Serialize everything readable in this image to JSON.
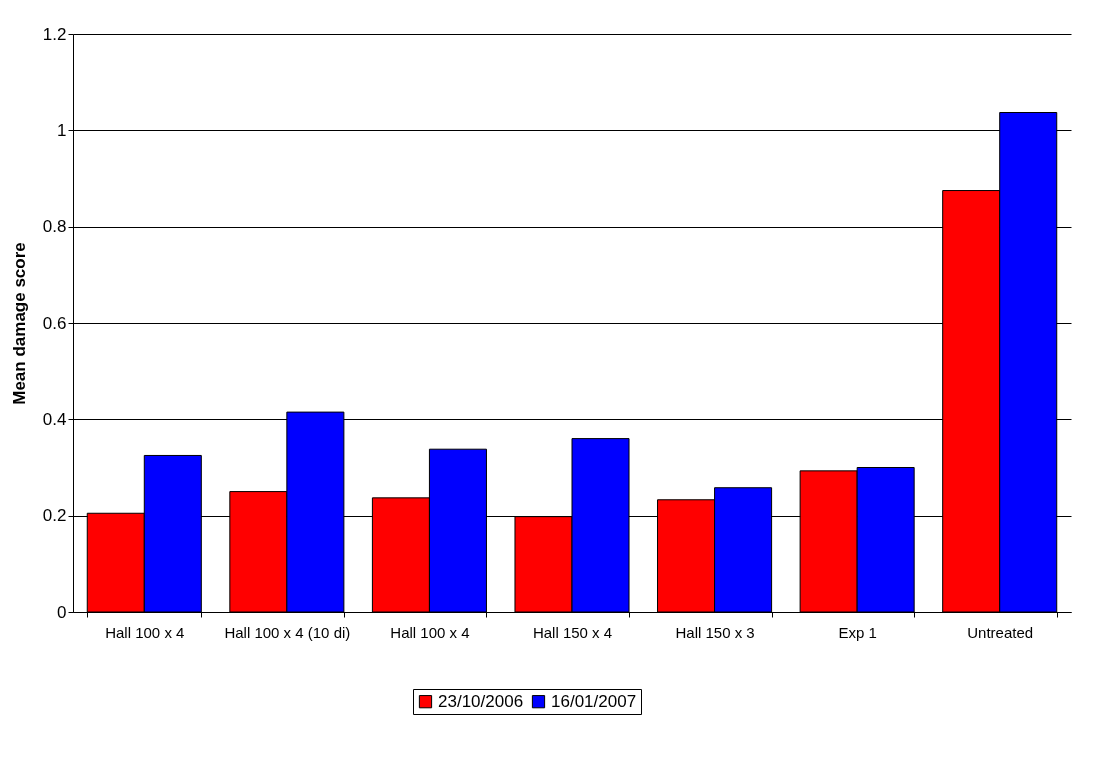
{
  "chart_data": {
    "type": "bar",
    "ylabel": "Mean damage score",
    "categories": [
      "Hall 100 x 4",
      "Hall 100 x 4 (10 di)",
      "Hall 100 x 4",
      "Hall 150 x 4",
      "Hall 150 x 3",
      "Exp 1",
      "Untreated"
    ],
    "series": [
      {
        "name": "23/10/2006",
        "color": "#ff0000",
        "values": [
          0.205,
          0.25,
          0.237,
          0.198,
          0.233,
          0.293,
          0.875
        ]
      },
      {
        "name": "16/01/2007",
        "color": "#0000ff",
        "values": [
          0.325,
          0.415,
          0.338,
          0.36,
          0.258,
          0.3,
          1.037
        ]
      }
    ],
    "ylim": [
      0,
      1.2
    ],
    "yticks": [
      0,
      0.2,
      0.4,
      0.6,
      0.8,
      1,
      1.2
    ],
    "grid": "y",
    "legend": "bottom"
  }
}
